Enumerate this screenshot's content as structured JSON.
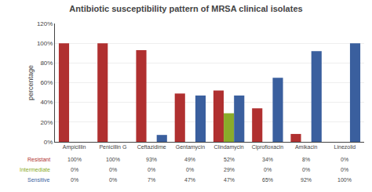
{
  "chart_data": {
    "type": "bar",
    "title": "Antibiotic susceptibility pattern of MRSA clinical isolates",
    "ylabel": "percentage",
    "categories": [
      "Ampicillin",
      "Penicillin G",
      "Ceftazidime",
      "Gentamycin",
      "Clindamycin",
      "Ciprofloxacin",
      "Amikacin",
      "Linezolid"
    ],
    "series": [
      {
        "name": "Resistant",
        "color": "#b03030",
        "values": [
          100,
          100,
          93,
          49,
          52,
          34,
          8,
          0
        ],
        "value_labels": [
          "100%",
          "100%",
          "93%",
          "49%",
          "52%",
          "34%",
          "8%",
          "0%"
        ]
      },
      {
        "name": "Intermediate",
        "color": "#8aab2a",
        "values": [
          0,
          0,
          0,
          0,
          29,
          0,
          0,
          0
        ],
        "value_labels": [
          "0%",
          "0%",
          "0%",
          "0%",
          "29%",
          "0%",
          "0%",
          "0%"
        ]
      },
      {
        "name": "Sensitive",
        "color": "#3a5f9e",
        "values": [
          0,
          0,
          7,
          47,
          47,
          65,
          92,
          100
        ],
        "value_labels": [
          "0%",
          "0%",
          "7%",
          "47%",
          "47%",
          "65%",
          "92%",
          "100%"
        ]
      }
    ],
    "ylim": [
      0,
      120
    ],
    "yticks": [
      {
        "value": 0,
        "label": "0%"
      },
      {
        "value": 20,
        "label": "20%"
      },
      {
        "value": 40,
        "label": "40%"
      },
      {
        "value": 60,
        "label": "60%"
      },
      {
        "value": 80,
        "label": "80%"
      },
      {
        "value": 100,
        "label": "100%"
      },
      {
        "value": 120,
        "label": "120%"
      }
    ],
    "grid": true
  }
}
